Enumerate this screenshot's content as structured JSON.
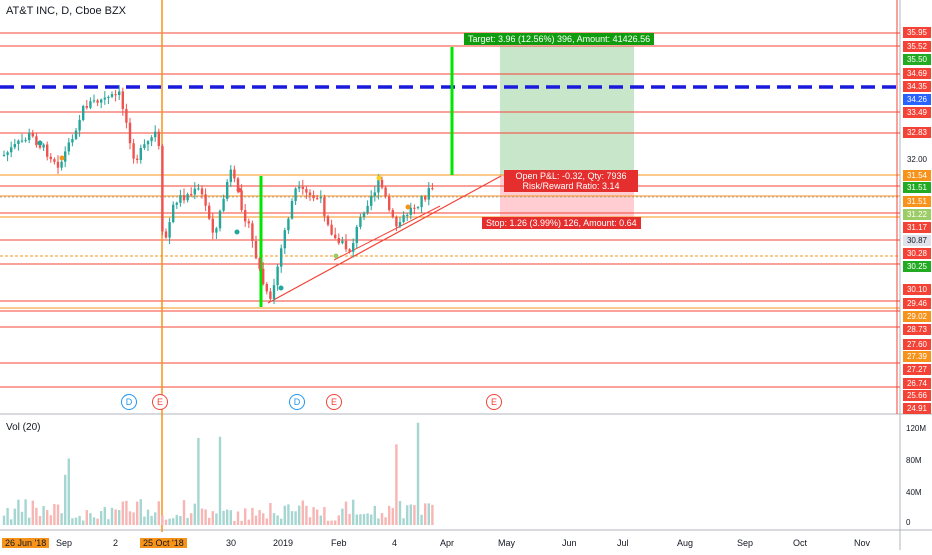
{
  "header": {
    "title": "AT&T INC, D, Cboe BZX"
  },
  "volume_pane": {
    "label": "Vol (20)",
    "axis_labels": [
      "120M",
      "80M",
      "40M",
      "0"
    ]
  },
  "price_axis": [
    {
      "text": "35.95",
      "color": "#f44336"
    },
    {
      "text": "35.52",
      "color": "#f44336"
    },
    {
      "text": "35.50",
      "color": "#22ab22"
    },
    {
      "text": "34.69",
      "color": "#f44336"
    },
    {
      "text": "34.35",
      "color": "#f44336"
    },
    {
      "text": "34.26",
      "color": "#2962ff"
    },
    {
      "text": "33.49",
      "color": "#f44336"
    },
    {
      "text": "32.83",
      "color": "#f44336"
    },
    {
      "text": "32.00",
      "color": "none"
    },
    {
      "text": "31.54",
      "color": "#f7931a"
    },
    {
      "text": "31.51",
      "color": "#22ab22"
    },
    {
      "text": "31.51",
      "color": "#f7931a"
    },
    {
      "text": "31.22",
      "color": "#9ccc65"
    },
    {
      "text": "31.17",
      "color": "#f44336"
    },
    {
      "text": "30.87",
      "color": "#e0e3eb"
    },
    {
      "text": "30.28",
      "color": "#f44336"
    },
    {
      "text": "30.25",
      "color": "#22ab22"
    },
    {
      "text": "30.10",
      "color": "#f44336"
    },
    {
      "text": "29.46",
      "color": "#f44336"
    },
    {
      "text": "29.02",
      "color": "#f7931a"
    },
    {
      "text": "28.73",
      "color": "#f44336"
    },
    {
      "text": "27.60",
      "color": "#f44336"
    },
    {
      "text": "27.39",
      "color": "#f7931a"
    },
    {
      "text": "27.27",
      "color": "#f44336"
    },
    {
      "text": "26.74",
      "color": "#f44336"
    },
    {
      "text": "25.66",
      "color": "#f44336"
    },
    {
      "text": "24.91",
      "color": "#f44336"
    }
  ],
  "time_axis": [
    {
      "text": "26 Jun '18",
      "highlight": true
    },
    {
      "text": "Sep",
      "highlight": false
    },
    {
      "text": "2",
      "highlight": false
    },
    {
      "text": "25 Oct '18",
      "highlight": true
    },
    {
      "text": "30",
      "highlight": false
    },
    {
      "text": "2019",
      "highlight": false
    },
    {
      "text": "Feb",
      "highlight": false
    },
    {
      "text": "4",
      "highlight": false
    },
    {
      "text": "Apr",
      "highlight": false
    },
    {
      "text": "May",
      "highlight": false
    },
    {
      "text": "Jun",
      "highlight": false
    },
    {
      "text": "Jul",
      "highlight": false
    },
    {
      "text": "Aug",
      "highlight": false
    },
    {
      "text": "Sep",
      "highlight": false
    },
    {
      "text": "Oct",
      "highlight": false
    },
    {
      "text": "Nov",
      "highlight": false
    }
  ],
  "events": [
    "D",
    "E",
    "D",
    "E",
    "E"
  ],
  "position_tool": {
    "target": "Target: 3.96 (12.56%) 396, Amount: 41426.56",
    "open_pnl": "Open P&L: -0.32, Qty: 7936",
    "risk_reward": "Risk/Reward Ratio: 3.14",
    "stop": "Stop: 1.26 (3.99%) 126, Amount: 0.64"
  },
  "colors": {
    "up": "#26a69a",
    "down": "#ef5350",
    "resistance": "#f44336",
    "support_dashed": "#1a1adc",
    "marker_vline": "#f7931a",
    "profit_zone": "#c8e6c9",
    "loss_zone": "#ffcdd2",
    "signal_bar": "#00e600"
  }
}
